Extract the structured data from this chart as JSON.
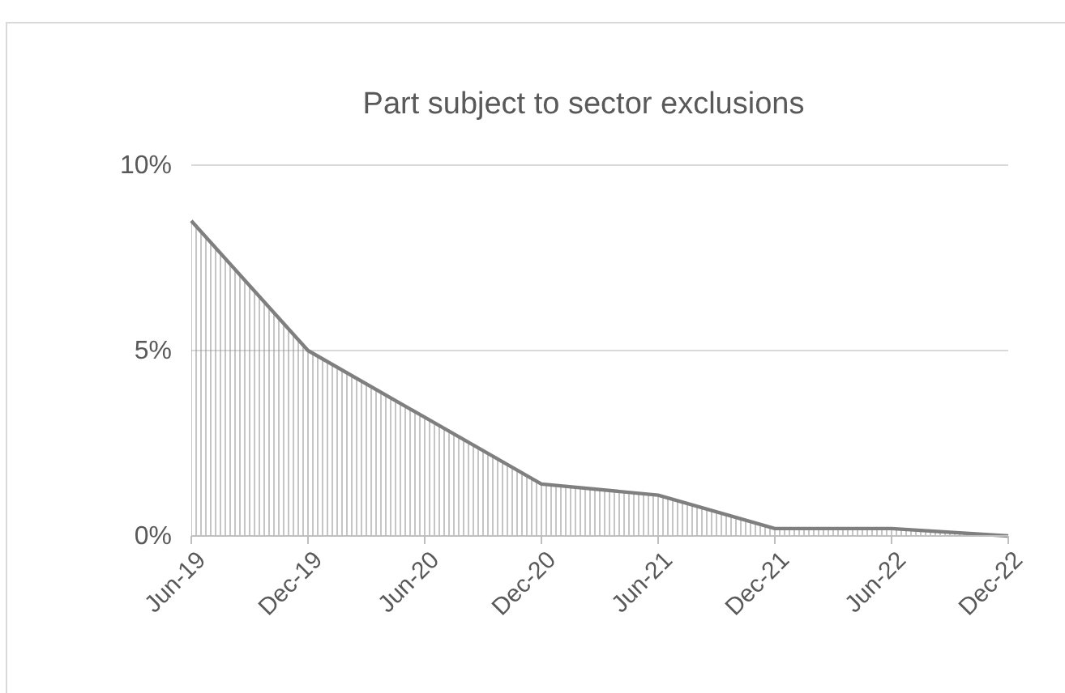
{
  "chart_data": {
    "type": "area",
    "title": "Part subject to sector exclusions",
    "categories": [
      "Jun-19",
      "Dec-19",
      "Jun-20",
      "Dec-20",
      "Jun-21",
      "Dec-21",
      "Jun-22",
      "Dec-22"
    ],
    "series": [
      {
        "color": "#7f7f7f",
        "values": [
          8.5,
          5.0,
          3.2,
          1.4,
          1.1,
          0.2,
          0.2,
          0.0
        ]
      }
    ],
    "ylim": [
      0,
      10
    ],
    "yticks": [
      {
        "value": 0,
        "label": "0%"
      },
      {
        "value": 5,
        "label": "5%"
      },
      {
        "value": 10,
        "label": "10%"
      }
    ],
    "grid": "y"
  }
}
